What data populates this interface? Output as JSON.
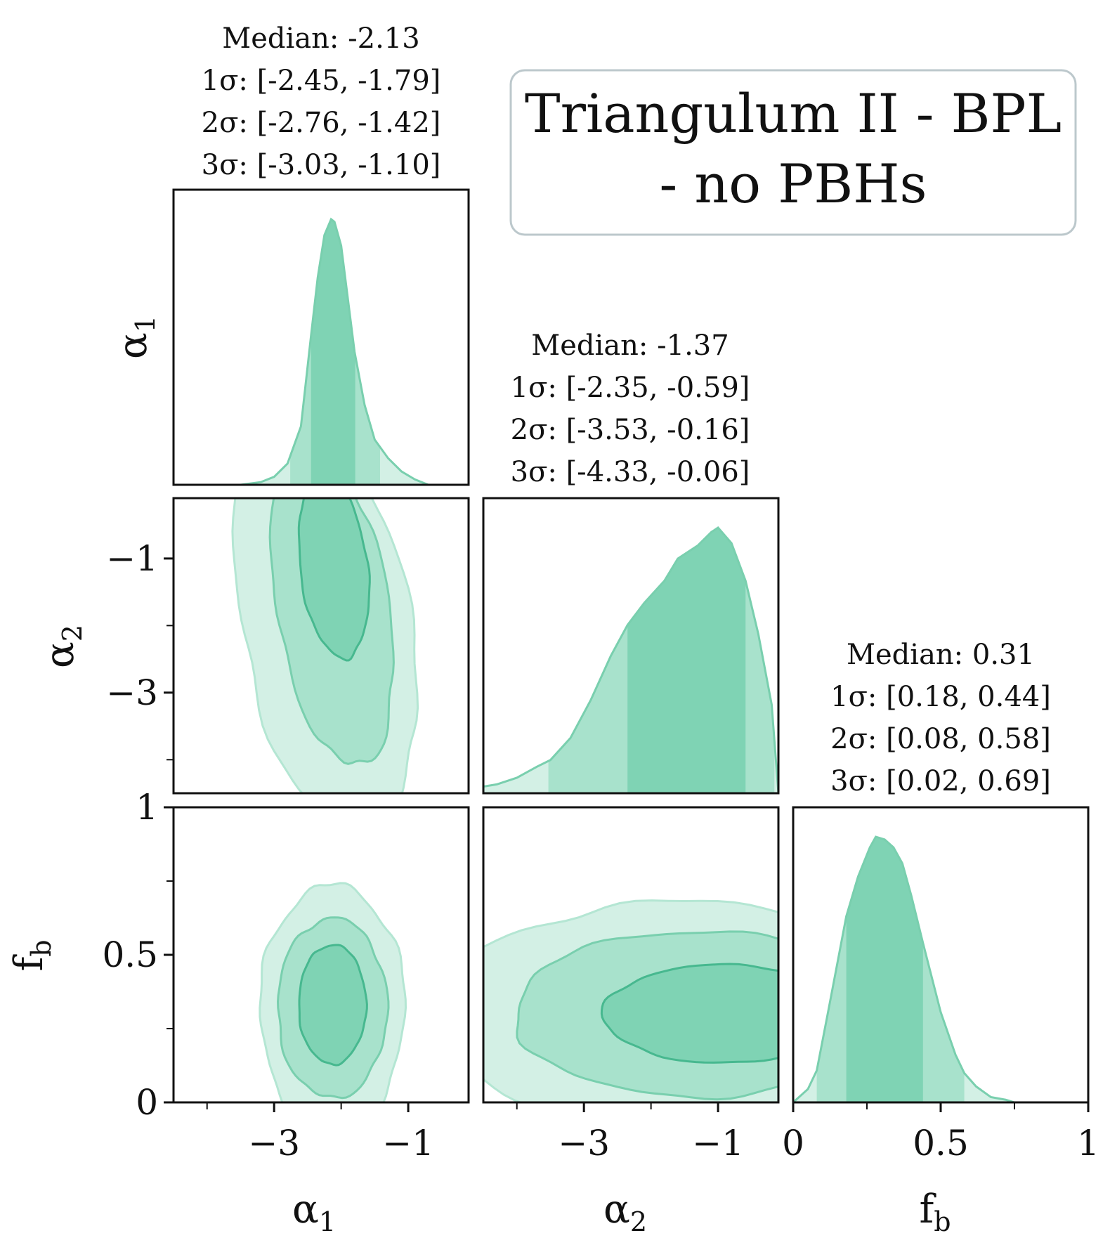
{
  "chart_data": {
    "type": "corner",
    "title": "Triangulum II - BPL - no PBHs",
    "title_lines": [
      "Triangulum II - BPL",
      "- no PBHs"
    ],
    "parameters": [
      {
        "key": "alpha1",
        "symbol": "α",
        "sub": "1",
        "range": [
          -4.5,
          -0.1
        ],
        "ticks": [
          -3,
          -1
        ],
        "tick_labels": [
          "−3",
          "−1"
        ]
      },
      {
        "key": "alpha2",
        "symbol": "α",
        "sub": "2",
        "range": [
          -4.5,
          -0.1
        ],
        "ticks": [
          -3,
          -1
        ],
        "tick_labels": [
          "−3",
          "−1"
        ]
      },
      {
        "key": "fb",
        "symbol": "f",
        "sub": "b",
        "range": [
          0,
          1
        ],
        "ticks": [
          0,
          0.5,
          1
        ],
        "tick_labels": [
          "0",
          "0.5",
          "1"
        ]
      }
    ],
    "y_axis_ticks": {
      "alpha2": {
        "ticks": [
          -1,
          -3
        ],
        "labels": [
          "−1",
          "−3"
        ]
      },
      "fb": {
        "ticks": [
          1,
          0.5,
          0
        ],
        "labels": [
          "1",
          "0.5",
          "0"
        ]
      }
    },
    "summaries": [
      {
        "param": "alpha1",
        "median_label": "Median: -2.13",
        "s1_label": "1σ: [-2.45, -1.79]",
        "s2_label": "2σ: [-2.76, -1.42]",
        "s3_label": "3σ: [-3.03, -1.10]",
        "median": -2.13,
        "s1": [
          -2.45,
          -1.79
        ],
        "s2": [
          -2.76,
          -1.42
        ],
        "s3": [
          -3.03,
          -1.1
        ]
      },
      {
        "param": "alpha2",
        "median_label": "Median: -1.37",
        "s1_label": "1σ: [-2.35, -0.59]",
        "s2_label": "2σ: [-3.53, -0.16]",
        "s3_label": "3σ: [-4.33, -0.06]",
        "median": -1.37,
        "s1": [
          -2.35,
          -0.59
        ],
        "s2": [
          -3.53,
          -0.16
        ],
        "s3": [
          -4.33,
          -0.06
        ]
      },
      {
        "param": "fb",
        "median_label": "Median: 0.31",
        "s1_label": "1σ: [0.18, 0.44]",
        "s2_label": "2σ: [0.08, 0.58]",
        "s3_label": "3σ: [0.02, 0.69]",
        "median": 0.31,
        "s1": [
          0.18,
          0.44
        ],
        "s2": [
          0.08,
          0.58
        ],
        "s3": [
          0.02,
          0.69
        ]
      }
    ],
    "marginals": {
      "alpha1": {
        "x": [
          -3.5,
          -3.2,
          -3.0,
          -2.8,
          -2.6,
          -2.45,
          -2.35,
          -2.25,
          -2.15,
          -2.1,
          -2.0,
          -1.9,
          -1.8,
          -1.65,
          -1.5,
          -1.3,
          -1.1,
          -0.9,
          -0.7
        ],
        "y": [
          0.0,
          0.01,
          0.03,
          0.08,
          0.22,
          0.56,
          0.78,
          0.94,
          1.0,
          0.99,
          0.9,
          0.7,
          0.5,
          0.3,
          0.17,
          0.1,
          0.05,
          0.02,
          0.0
        ]
      },
      "alpha2": {
        "x": [
          -4.5,
          -4.3,
          -4.0,
          -3.7,
          -3.5,
          -3.2,
          -2.9,
          -2.6,
          -2.35,
          -2.1,
          -1.8,
          -1.6,
          -1.3,
          -1.1,
          -1.0,
          -0.8,
          -0.59,
          -0.4,
          -0.2,
          -0.1
        ],
        "y": [
          0.03,
          0.04,
          0.07,
          0.12,
          0.15,
          0.25,
          0.42,
          0.62,
          0.76,
          0.86,
          0.96,
          1.06,
          1.12,
          1.18,
          1.2,
          1.13,
          0.96,
          0.72,
          0.4,
          0.0
        ]
      },
      "fb": {
        "x": [
          0.0,
          0.05,
          0.08,
          0.12,
          0.18,
          0.22,
          0.26,
          0.28,
          0.31,
          0.34,
          0.37,
          0.4,
          0.44,
          0.5,
          0.55,
          0.58,
          0.62,
          0.67,
          0.72,
          0.75
        ],
        "y": [
          0.0,
          0.05,
          0.12,
          0.35,
          0.7,
          0.85,
          0.96,
          1.0,
          0.99,
          0.96,
          0.9,
          0.78,
          0.6,
          0.34,
          0.18,
          0.11,
          0.06,
          0.02,
          0.01,
          0.0
        ]
      }
    },
    "contours_2d": {
      "alpha1_alpha2": {
        "center": [
          -2.13,
          -1.37
        ],
        "levels": [
          "1σ",
          "2σ",
          "3σ"
        ]
      },
      "alpha1_fb": {
        "center": [
          -2.13,
          0.31
        ],
        "levels": [
          "1σ",
          "2σ",
          "3σ"
        ]
      },
      "alpha2_fb": {
        "center": [
          -1.37,
          0.31
        ],
        "levels": [
          "1σ",
          "2σ",
          "3σ"
        ]
      }
    },
    "colors": {
      "level1": "#7fd3b4",
      "level2": "#a8e2cc",
      "level3": "#d3f0e5",
      "line1": "#47b88f",
      "line2": "#79cfae",
      "line3": "#b4e6d3",
      "frame": "#111111",
      "legend_border": "#bcc8cc"
    }
  }
}
